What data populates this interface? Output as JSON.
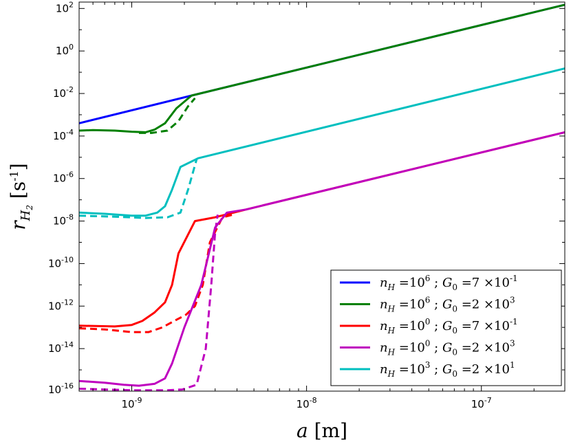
{
  "chart_data": {
    "type": "line",
    "title": "",
    "xscale": "log",
    "yscale": "log",
    "xlim": [
      5e-10,
      3e-07
    ],
    "ylim": [
      1e-16,
      200
    ],
    "grid": false,
    "legend_position": "lower-right",
    "xlabel": {
      "symbol": "a",
      "unit": "[m]"
    },
    "ylabel": {
      "symbol": "r",
      "subscript": "H",
      "subsubscript": "2",
      "unit": "[s",
      "unit_exp": "-1",
      "unit_close": "]"
    },
    "xticks": [
      {
        "base": "10",
        "exp": "-9",
        "value": 1e-09
      },
      {
        "base": "10",
        "exp": "-8",
        "value": 1e-08
      },
      {
        "base": "10",
        "exp": "-7",
        "value": 1e-07
      }
    ],
    "yticks": [
      {
        "base": "10",
        "exp": "2",
        "value": 100.0
      },
      {
        "base": "10",
        "exp": "0",
        "value": 1.0
      },
      {
        "base": "10",
        "exp": "-2",
        "value": 0.01
      },
      {
        "base": "10",
        "exp": "-4",
        "value": 0.0001
      },
      {
        "base": "10",
        "exp": "-6",
        "value": 1e-06
      },
      {
        "base": "10",
        "exp": "-8",
        "value": 1e-08
      },
      {
        "base": "10",
        "exp": "-10",
        "value": 1e-10
      },
      {
        "base": "10",
        "exp": "-12",
        "value": 1e-12
      },
      {
        "base": "10",
        "exp": "-14",
        "value": 1e-14
      },
      {
        "base": "10",
        "exp": "-16",
        "value": 1e-16
      }
    ],
    "series": [
      {
        "name": "nH=1e6; G0=7e-1",
        "color": "#0000ff",
        "style": "solid",
        "x": [
          5e-10,
          2.2e-09,
          3e-07
        ],
        "y": [
          0.0004,
          0.008,
          150
        ]
      },
      {
        "name": "nH=1e6; G0=7e-1 (dashed)",
        "color": "#0000ff",
        "style": "dashed",
        "x": [],
        "y": []
      },
      {
        "name": "nH=1e6; G0=2e3",
        "color": "#008000",
        "style": "solid",
        "x": [
          5e-10,
          6e-10,
          8e-10,
          1e-09,
          1.2e-09,
          1.35e-09,
          1.55e-09,
          1.8e-09,
          2.2e-09,
          3e-07
        ],
        "y": [
          0.00018,
          0.00019,
          0.00018,
          0.00016,
          0.00015,
          0.0002,
          0.0004,
          0.002,
          0.008,
          150
        ]
      },
      {
        "name": "nH=1e6; G0=2e3 (dashed)",
        "color": "#008000",
        "style": "dashed",
        "x": [
          1.1e-09,
          1.3e-09,
          1.6e-09,
          1.85e-09,
          2.1e-09,
          2.3e-09
        ],
        "y": [
          0.00014,
          0.00014,
          0.00018,
          0.0005,
          0.0025,
          0.006
        ]
      },
      {
        "name": "nH=1e3; G0=2e1",
        "color": "#00bfbf",
        "style": "solid",
        "x": [
          5e-10,
          7e-10,
          1e-09,
          1.2e-09,
          1.4e-09,
          1.55e-09,
          1.7e-09,
          1.9e-09,
          2.4e-09,
          3e-07
        ],
        "y": [
          2.5e-08,
          2.2e-08,
          1.8e-08,
          1.8e-08,
          2.5e-08,
          5e-08,
          3e-07,
          3.5e-06,
          9e-06,
          0.15
        ]
      },
      {
        "name": "nH=1e3; G0=2e1 (dashed)",
        "color": "#00bfbf",
        "style": "dashed",
        "x": [
          5e-10,
          8e-10,
          1.2e-09,
          1.6e-09,
          1.9e-09,
          2.1e-09,
          2.35e-09
        ],
        "y": [
          1.8e-08,
          1.6e-08,
          1.4e-08,
          1.5e-08,
          2.5e-08,
          3e-07,
          8e-06
        ]
      },
      {
        "name": "nH=1e0; G0=7e-1",
        "color": "#ff0000",
        "style": "solid",
        "x": [
          5e-10,
          8e-10,
          1e-09,
          1.15e-09,
          1.35e-09,
          1.55e-09,
          1.7e-09,
          1.85e-09,
          2.3e-09,
          3e-09,
          4.5e-09,
          3e-07
        ],
        "y": [
          1.2e-13,
          1.1e-13,
          1.3e-13,
          2e-13,
          5e-13,
          1.5e-12,
          1e-11,
          3e-10,
          1e-08,
          1.5e-08,
          3.5e-08,
          0.00015
        ]
      },
      {
        "name": "nH=1e0; G0=7e-1 (dashed)",
        "color": "#ff0000",
        "style": "dashed",
        "x": [
          5e-10,
          7e-10,
          1e-09,
          1.25e-09,
          1.5e-09,
          1.75e-09,
          2.05e-09,
          2.3e-09,
          2.55e-09,
          2.8e-09,
          3.3e-09,
          3.8e-09
        ],
        "y": [
          9e-14,
          8e-14,
          6e-14,
          6e-14,
          1e-13,
          2e-13,
          4e-13,
          1e-12,
          1e-11,
          1e-09,
          1.5e-08,
          2e-08
        ]
      },
      {
        "name": "nH=1e0; G0=2e3",
        "color": "#bf00bf",
        "style": "solid",
        "x": [
          5e-10,
          7e-10,
          9e-10,
          1.1e-09,
          1.35e-09,
          1.55e-09,
          1.7e-09,
          2e-09,
          2.5e-09,
          3e-09,
          3.5e-09,
          4.5e-09,
          3e-07
        ],
        "y": [
          3e-16,
          2.5e-16,
          2e-16,
          1.8e-16,
          2.2e-16,
          4e-16,
          2e-15,
          1e-13,
          1e-11,
          5e-09,
          2.5e-08,
          3.5e-08,
          0.00015
        ]
      },
      {
        "name": "nH=1e0; G0=2e3 (dashed)",
        "color": "#bf00bf",
        "style": "dashed",
        "x": [
          5e-10,
          7e-10,
          1e-09,
          1.3e-09,
          1.6e-09,
          1.95e-09,
          2.35e-09,
          2.65e-09,
          2.85e-09,
          3e-09,
          3.1e-09
        ],
        "y": [
          1.3e-16,
          1.2e-16,
          1.1e-16,
          1.1e-16,
          1.1e-16,
          1.2e-16,
          2e-16,
          1e-14,
          1e-11,
          3e-09,
          2e-08
        ]
      }
    ],
    "legend": [
      {
        "color": "#0000ff",
        "nH_base": "10",
        "nH_exp": "6",
        "g0_mant": "7",
        "g0_base": "10",
        "g0_exp": "-1"
      },
      {
        "color": "#008000",
        "nH_base": "10",
        "nH_exp": "6",
        "g0_mant": "2",
        "g0_base": "10",
        "g0_exp": "3"
      },
      {
        "color": "#ff0000",
        "nH_base": "10",
        "nH_exp": "0",
        "g0_mant": "7",
        "g0_base": "10",
        "g0_exp": "-1"
      },
      {
        "color": "#bf00bf",
        "nH_base": "10",
        "nH_exp": "0",
        "g0_mant": "2",
        "g0_base": "10",
        "g0_exp": "3"
      },
      {
        "color": "#00bfbf",
        "nH_base": "10",
        "nH_exp": "3",
        "g0_mant": "2",
        "g0_base": "10",
        "g0_exp": "1"
      }
    ]
  }
}
